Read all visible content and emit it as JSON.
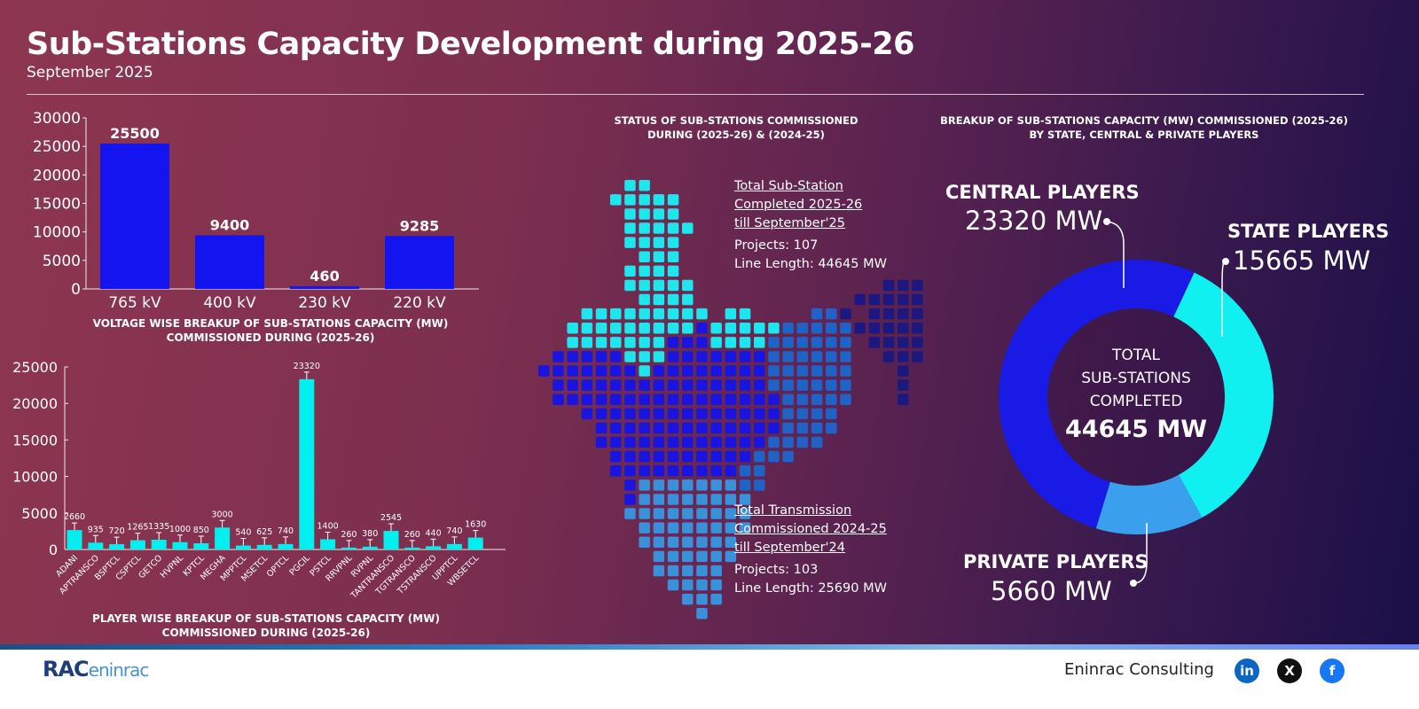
{
  "header": {
    "title": "Sub-Stations Capacity Development during 2025-26",
    "subtitle": "September 2025"
  },
  "colors": {
    "bar_blue": "#1414f0",
    "bar_cyan": "#00f0f0",
    "central": "#1a1ae6",
    "state": "#10f0f0",
    "private": "#3aa0ee",
    "map_north": "#1ee6ee",
    "map_central": "#1a14e0",
    "map_east": "#1f63c8",
    "map_northeast": "#1c1880",
    "map_south": "#3b90dc"
  },
  "chart_data": [
    {
      "type": "bar",
      "title": "VOLTAGE WISE BREAKUP OF SUB-STATIONS CAPACITY (MW) COMMISSIONED DURING (2025-26)",
      "categories": [
        "765 kV",
        "400 kV",
        "230 kV",
        "220 kV"
      ],
      "values": [
        25500,
        9400,
        460,
        9285
      ],
      "ylim": [
        0,
        30000
      ],
      "yticks": [
        "30000",
        "25000",
        "20000",
        "15000",
        "10000",
        "5000",
        "0"
      ]
    },
    {
      "type": "bar",
      "title": "PLAYER WISE BREAKUP OF SUB-STATIONS CAPACITY (MW) COMMISSIONED DURING (2025-26)",
      "categories": [
        "ADANI",
        "APTRANSCO",
        "BSPTCL",
        "CSPTCL",
        "GETCO",
        "HVPNL",
        "KPTCL",
        "MEGHA",
        "MPPTCL",
        "MSETCL",
        "OPTCL",
        "PGCIL",
        "PSTCL",
        "RRVPNL",
        "RVPNL",
        "TANTRANSCO",
        "TGTRANSCO",
        "TSTRANSCO",
        "UPPTCL",
        "WBSETCL"
      ],
      "values": [
        2660,
        935,
        720,
        1265,
        1335,
        1000,
        850,
        3000,
        540,
        625,
        740,
        23320,
        1400,
        260,
        380,
        2545,
        260,
        440,
        740,
        1630
      ],
      "ylim": [
        0,
        25000
      ],
      "yticks": [
        "25000",
        "20000",
        "15000",
        "10000",
        "5000",
        "0"
      ],
      "error_bars": true
    },
    {
      "type": "pie",
      "title": "BREAKUP OF SUB-STATIONS CAPACITY (MW) COMMISSIONED (2025-26) BY STATE, CENTRAL & PRIVATE PLAYERS",
      "donut": true,
      "slices": [
        {
          "label": "CENTRAL PLAYERS",
          "value": 23320,
          "display": "23320 MW"
        },
        {
          "label": "STATE PLAYERS",
          "value": 15665,
          "display": "15665 MW"
        },
        {
          "label": "PRIVATE PLAYERS",
          "value": 5660,
          "display": "5660 MW"
        }
      ],
      "center": {
        "line1": "TOTAL",
        "line2": "SUB-STATIONS",
        "line3": "COMPLETED",
        "total": "44645 MW"
      }
    }
  ],
  "map": {
    "title_line1": "STATUS OF SUB-STATIONS COMMISSIONED",
    "title_line2": "DURING (2025-26) & (2024-25)",
    "current": {
      "h1": "Total Sub-Station",
      "h2": "Completed 2025-26",
      "h3": "till September'25",
      "projects": "Projects: 107",
      "length": "Line Length: 44645 MW"
    },
    "previous": {
      "h1": "Total Transmission",
      "h2": "Commissioned 2024-25",
      "h3": "till September'24",
      "projects": "Projects: 103",
      "length": "Line Length: 25690 MW"
    }
  },
  "footer": {
    "logo": "RAC eninrac",
    "company": "Eninrac Consulting",
    "social": [
      {
        "name": "linkedin-icon",
        "glyph": "in",
        "color": "#0a66c2"
      },
      {
        "name": "x-icon",
        "glyph": "X",
        "color": "#111111"
      },
      {
        "name": "facebook-icon",
        "glyph": "f",
        "color": "#1877f2"
      }
    ]
  }
}
